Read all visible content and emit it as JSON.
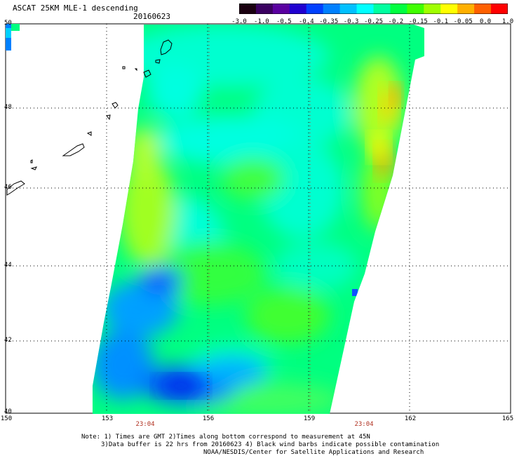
{
  "header": {
    "title": "ASCAT 25KM MLE-1 descending",
    "date": "20160623"
  },
  "legend": {
    "colors": [
      "#1a0010",
      "#3a0060",
      "#5a00a0",
      "#2000d0",
      "#0040ff",
      "#0080ff",
      "#00c0ff",
      "#00ffff",
      "#00ffa0",
      "#00ff40",
      "#40ff00",
      "#a0ff00",
      "#ffff00",
      "#ffb000",
      "#ff6000",
      "#ff0000"
    ],
    "labels": [
      "-3.0",
      "-1.0",
      "-0.5",
      "-0.4",
      "-0.35",
      "-0.3",
      "-0.25",
      "-0.2",
      "-0.15",
      "-0.1",
      "-0.05",
      "0.0",
      "1.0"
    ]
  },
  "axes": {
    "lat_labels": [
      "50",
      "48",
      "46",
      "44",
      "42",
      "40"
    ],
    "lon_labels": [
      "150",
      "153",
      "156",
      "159",
      "162",
      "165"
    ],
    "time_labels": [
      "23:04",
      "23:04"
    ]
  },
  "notes": {
    "line1": "Note: 1) Times are GMT 2)Times along bottom correspond to measurement at 45N",
    "line2": "3)Data buffer is 22 hrs from 20160623 4) Black wind barbs indicate possible contamination",
    "line3": "NOAA/NESDIS/Center for Satellite Applications and Research"
  }
}
